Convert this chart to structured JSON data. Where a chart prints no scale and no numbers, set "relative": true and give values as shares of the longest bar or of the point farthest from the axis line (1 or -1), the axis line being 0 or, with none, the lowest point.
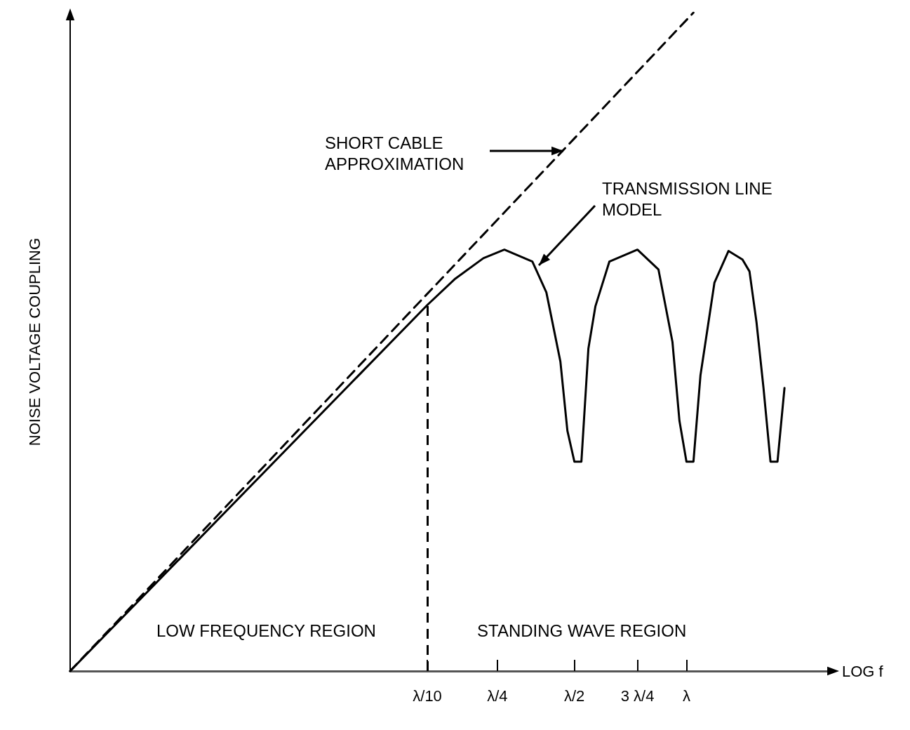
{
  "chart_data": {
    "type": "line",
    "relative": true,
    "xlabel": "LOG f",
    "ylabel": "NOISE VOLTAGE COUPLING",
    "categories": [
      null,
      null,
      null,
      null,
      null,
      null,
      null,
      null,
      null,
      null,
      null,
      null,
      null,
      null,
      null,
      null,
      null,
      null,
      null,
      null,
      null,
      null,
      null,
      null,
      null,
      null,
      null,
      null,
      null,
      null,
      null,
      null,
      null,
      null,
      null,
      null,
      null,
      null,
      null,
      null,
      null,
      null,
      null,
      null,
      null,
      null,
      null,
      null,
      null,
      null,
      null,
      "λ/10",
      null,
      null,
      null,
      null,
      null,
      null,
      null,
      null,
      null,
      "λ/4",
      null,
      null,
      null,
      null,
      null,
      null,
      null,
      null,
      null,
      null,
      "λ/2",
      null,
      null,
      null,
      null,
      null,
      null,
      null,
      null,
      "3 λ/4",
      null,
      null,
      null,
      null,
      null,
      null,
      "λ",
      null,
      null,
      null,
      null,
      null,
      null,
      null,
      null,
      null,
      null,
      null,
      null,
      null,
      null,
      null,
      null,
      null,
      null,
      null,
      null,
      null
    ],
    "annotations": [
      "SHORT CABLE\nAPPROXIMATION",
      "TRANSMISSION LINE\nMODEL",
      "LOW FREQUENCY REGION",
      "STANDING WAVE REGION"
    ],
    "marker": "none",
    "ref_lines": [
      {
        "axis": "x",
        "value": "λ/10",
        "line_style": "dashed",
        "color": "#000000"
      }
    ],
    "series": [
      {
        "color": "#000000",
        "line_style": "dashed",
        "values": [
          0,
          null,
          null,
          null,
          null,
          null,
          null,
          null,
          null,
          null,
          null,
          null,
          null,
          null,
          null,
          null,
          null,
          null,
          null,
          null,
          null,
          null,
          null,
          null,
          null,
          null,
          null,
          null,
          null,
          null,
          null,
          null,
          null,
          null,
          null,
          null,
          null,
          null,
          null,
          null,
          null,
          null,
          null,
          null,
          null,
          null,
          null,
          null,
          null,
          null,
          null,
          null,
          null,
          null,
          null,
          null,
          null,
          null,
          null,
          null,
          null,
          null,
          null,
          null,
          null,
          null,
          null,
          null,
          null,
          null,
          null,
          null,
          null,
          null,
          null,
          null,
          null,
          null,
          null,
          null,
          null,
          null,
          null,
          null,
          null,
          null,
          null,
          null,
          null,
          1,
          null,
          null,
          null,
          null,
          null,
          null,
          null,
          null,
          null,
          null,
          null,
          null,
          null,
          null,
          null,
          null,
          null,
          null,
          null,
          null
        ]
      },
      {
        "color": "#000000",
        "line_style": "solid",
        "values": [
          0,
          null,
          null,
          null,
          null,
          null,
          null,
          null,
          null,
          null,
          null,
          null,
          null,
          null,
          null,
          null,
          null,
          null,
          null,
          null,
          null,
          null,
          null,
          null,
          null,
          null,
          null,
          null,
          null,
          null,
          null,
          null,
          null,
          null,
          null,
          null,
          null,
          null,
          null,
          null,
          null,
          null,
          null,
          null,
          null,
          null,
          null,
          null,
          null,
          null,
          null,
          0.556,
          null,
          null,
          null,
          0.596,
          null,
          null,
          null,
          0.627,
          null,
          null,
          0.64,
          null,
          null,
          null,
          0.622,
          null,
          0.575,
          null,
          0.47,
          0.365,
          0.318,
          0.318,
          0.49,
          0.554,
          null,
          0.622,
          null,
          null,
          null,
          0.64,
          null,
          null,
          0.61,
          null,
          0.5,
          0.38,
          0.318,
          0.318,
          0.449,
          null,
          0.59,
          null,
          0.638,
          null,
          0.625,
          0.607,
          0.53,
          0.43,
          0.318,
          0.318,
          0.43,
          null,
          null,
          null,
          null,
          null,
          null,
          null
        ]
      }
    ]
  }
}
